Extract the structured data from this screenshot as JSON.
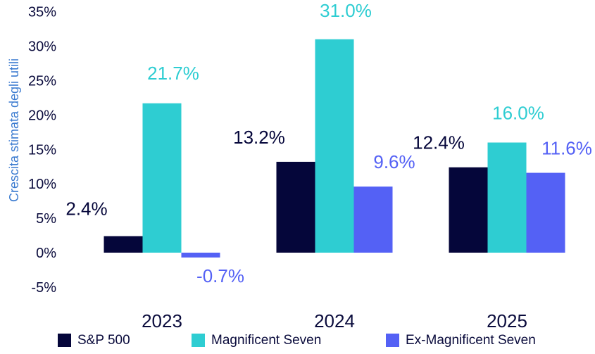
{
  "chart_data": {
    "type": "bar",
    "title": "",
    "xlabel": "",
    "ylabel": "Crescita stimata degli utili",
    "categories": [
      "2023",
      "2024",
      "2025"
    ],
    "ylim": [
      -5,
      35
    ],
    "yticks": [
      -5,
      0,
      5,
      10,
      15,
      20,
      25,
      30,
      35
    ],
    "ytick_labels": [
      "-5%",
      "0%",
      "5%",
      "10%",
      "15%",
      "20%",
      "25%",
      "30%",
      "35%"
    ],
    "grid": false,
    "legend_position": "bottom",
    "series": [
      {
        "name": "S&P 500",
        "color": "#05063a",
        "label_color": "#05063a",
        "values": [
          2.4,
          13.2,
          12.4
        ],
        "labels": [
          "2.4%",
          "13.2%",
          "12.4%"
        ]
      },
      {
        "name": "Magnificent Seven",
        "color": "#2ecdd2",
        "label_color": "#2ecdd2",
        "values": [
          21.7,
          31.0,
          16.0
        ],
        "labels": [
          "21.7%",
          "31.0%",
          "16.0%"
        ]
      },
      {
        "name": "Ex-Magnificent Seven",
        "color": "#5461f5",
        "label_color": "#5461f5",
        "values": [
          -0.7,
          9.6,
          11.6
        ],
        "labels": [
          "-0.7%",
          "9.6%",
          "11.6%"
        ]
      }
    ]
  }
}
